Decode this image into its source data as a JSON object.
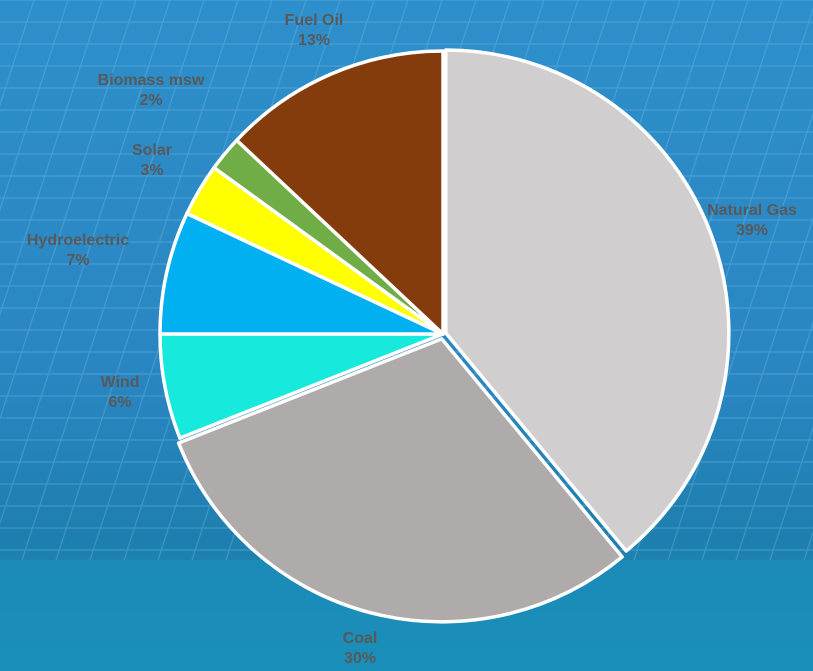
{
  "chart_data": {
    "type": "pie",
    "slices": [
      {
        "label": "Natural Gas",
        "value": 39,
        "pct_text": "39%",
        "color": "#D0CECE"
      },
      {
        "label": "Coal",
        "value": 30,
        "pct_text": "30%",
        "color": "#AFABAB"
      },
      {
        "label": "Wind",
        "value": 6,
        "pct_text": "6%",
        "color": "#17E9DD"
      },
      {
        "label": "Hydroelectric",
        "value": 7,
        "pct_text": "7%",
        "color": "#00B0F0"
      },
      {
        "label": "Solar",
        "value": 3,
        "pct_text": "3%",
        "color": "#FFFF00"
      },
      {
        "label": "Biomass msw",
        "value": 2,
        "pct_text": "2%",
        "color": "#70AD47"
      },
      {
        "label": "Fuel Oil",
        "value": 13,
        "pct_text": "13%",
        "color": "#843C0C"
      }
    ],
    "start_angle_deg": 0,
    "direction": "clockwise",
    "data_labels": "category-and-percent-outside",
    "border_color": "#FFFFFF",
    "background": "solar-panel-photo-blue"
  }
}
